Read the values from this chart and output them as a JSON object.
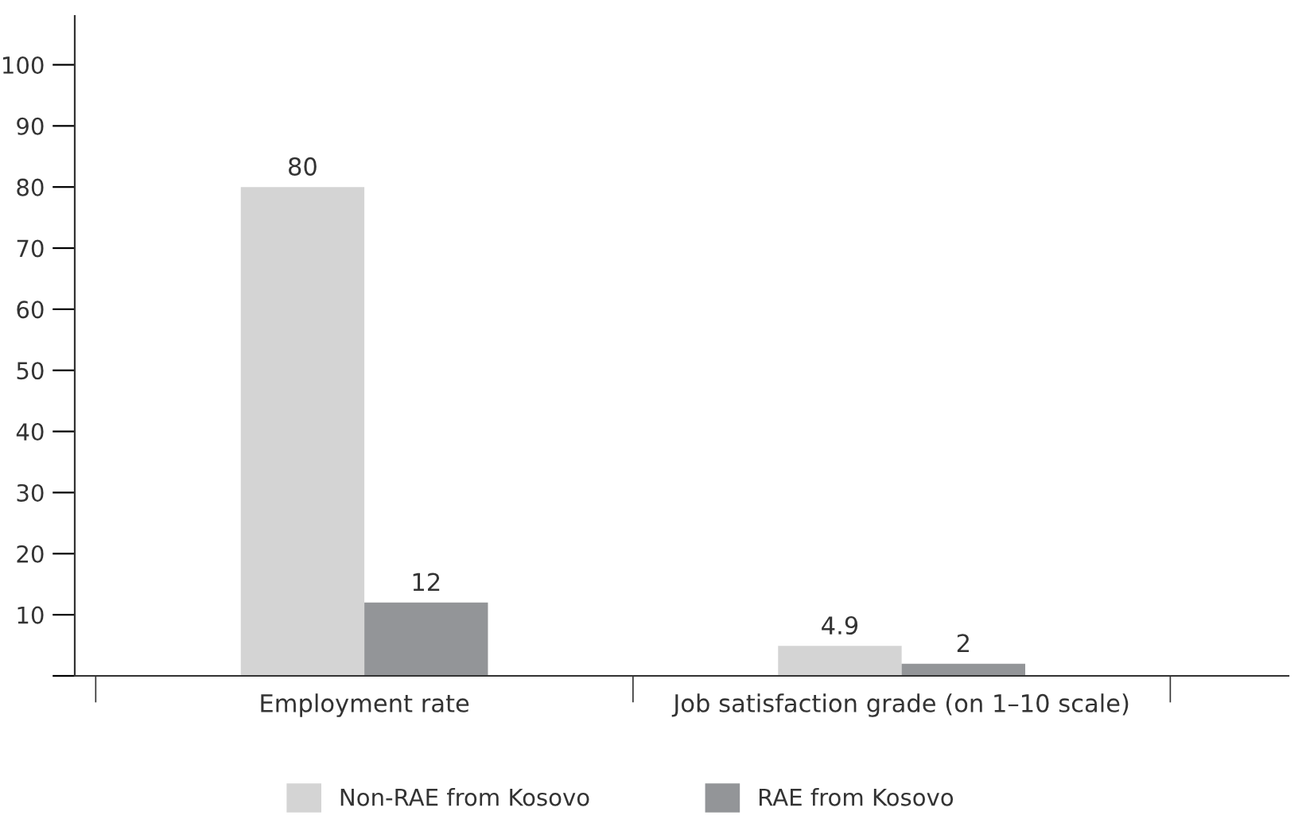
{
  "chart_data": {
    "type": "bar",
    "categories": [
      "Employment rate",
      "Job satisfaction grade (on 1–10 scale)"
    ],
    "series": [
      {
        "name": "Non-RAE from Kosovo",
        "color": "#d4d4d4",
        "values": [
          80,
          4.9
        ]
      },
      {
        "name": "RAE from Kosovo",
        "color": "#939598",
        "values": [
          12,
          2
        ]
      }
    ],
    "ylim": [
      0,
      108
    ],
    "yticks": [
      {
        "value": 0,
        "label": null
      },
      10,
      20,
      30,
      40,
      50,
      60,
      70,
      80,
      90,
      100
    ],
    "data_labels": true,
    "legend": "bottom",
    "grid": false
  }
}
